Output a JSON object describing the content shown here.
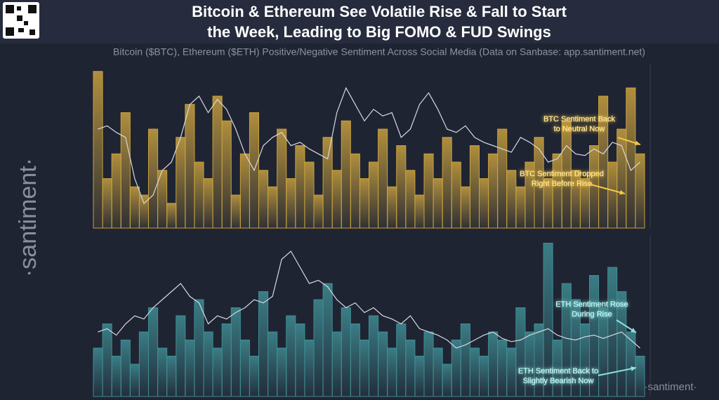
{
  "title": [
    "Bitcoin & Ethereum See Volatile Rise & Fall to Start",
    "the Week, Leading to Big FOMO & FUD Swings"
  ],
  "subtitle": "Bitcoin ($BTC), Ethereum ($ETH) Positive/Negative Sentiment Across Social Media (Data on Sanbase: app.santiment.net)",
  "watermark": "·santiment·",
  "chart_data": [
    {
      "type": "bar",
      "ylim": [
        0,
        100
      ],
      "color": "#c9a13e",
      "line_color": "#d8d8e0",
      "values": [
        95,
        30,
        45,
        70,
        25,
        20,
        60,
        35,
        15,
        55,
        75,
        40,
        30,
        80,
        65,
        20,
        45,
        70,
        35,
        25,
        60,
        30,
        50,
        40,
        20,
        55,
        35,
        65,
        45,
        30,
        40,
        60,
        25,
        50,
        35,
        20,
        45,
        30,
        55,
        40,
        25,
        50,
        30,
        45,
        60,
        35,
        25,
        40,
        55,
        30,
        45,
        65,
        35,
        30,
        50,
        80,
        40,
        60,
        85,
        45
      ],
      "line_values": [
        60,
        62,
        58,
        55,
        30,
        15,
        20,
        35,
        40,
        55,
        75,
        80,
        70,
        78,
        72,
        60,
        45,
        35,
        50,
        55,
        58,
        50,
        52,
        48,
        45,
        42,
        70,
        85,
        75,
        65,
        72,
        68,
        70,
        55,
        60,
        75,
        82,
        72,
        60,
        58,
        62,
        55,
        52,
        50,
        48,
        46,
        55,
        52,
        48,
        40,
        42,
        50,
        45,
        44,
        48,
        45,
        52,
        50,
        35,
        40
      ],
      "annotations": [
        [
          "BTC Sentiment Back",
          "to Neutral Now"
        ],
        [
          "BTC Sentiment Dropped",
          "Right Before Rise"
        ]
      ],
      "annotation_color": "#f3c848"
    },
    {
      "type": "bar",
      "ylim": [
        0,
        100
      ],
      "color": "#3f8d93",
      "line_color": "#d8d8e0",
      "values": [
        30,
        45,
        25,
        35,
        20,
        40,
        55,
        30,
        25,
        50,
        35,
        60,
        40,
        30,
        45,
        55,
        35,
        25,
        65,
        40,
        30,
        50,
        45,
        35,
        60,
        70,
        40,
        55,
        45,
        35,
        50,
        40,
        30,
        45,
        35,
        25,
        40,
        30,
        20,
        35,
        45,
        30,
        25,
        40,
        35,
        30,
        55,
        40,
        45,
        95,
        35,
        70,
        60,
        45,
        75,
        55,
        80,
        65,
        40,
        25
      ],
      "line_values": [
        40,
        42,
        38,
        45,
        50,
        48,
        55,
        60,
        65,
        70,
        62,
        58,
        45,
        50,
        48,
        52,
        55,
        60,
        58,
        62,
        85,
        90,
        80,
        70,
        72,
        68,
        60,
        55,
        58,
        52,
        55,
        50,
        48,
        45,
        50,
        42,
        40,
        38,
        35,
        30,
        32,
        35,
        38,
        40,
        36,
        34,
        35,
        38,
        40,
        42,
        38,
        36,
        35,
        37,
        38,
        36,
        38,
        40,
        35,
        30
      ],
      "annotations": [
        [
          "ETH Sentiment Rose",
          "During Rise"
        ],
        [
          "ETH Sentiment Back to",
          "Slightly Bearish Now"
        ]
      ],
      "annotation_color": "#8fe3df"
    }
  ]
}
